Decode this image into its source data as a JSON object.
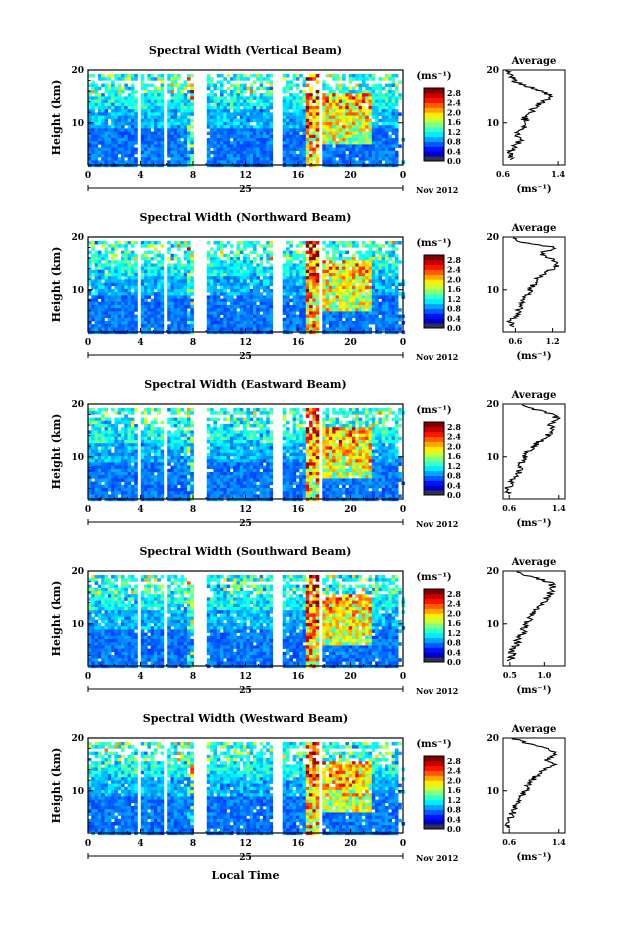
{
  "figure": {
    "date_label": "Nov 2012",
    "day_label": "25",
    "x_axis_title": "Local Time",
    "y_axis_title": "Height (km)",
    "colorbar_unit": "(ms⁻¹)",
    "avg_title": "Average",
    "avg_unit": "(ms⁻¹)"
  },
  "chart_data": [
    {
      "type": "heatmap",
      "title": "Spectral Width (Vertical Beam)",
      "xlabel": "Local Time",
      "ylabel": "Height (km)",
      "x_ticks": [
        "0",
        "4",
        "8",
        "12",
        "16",
        "20",
        "0"
      ],
      "y_ticks": [
        "10",
        "20"
      ],
      "xlim": [
        0,
        24
      ],
      "ylim": [
        2,
        20
      ],
      "colorbar": {
        "ticks": [
          "0.0",
          "0.4",
          "0.8",
          "1.2",
          "1.6",
          "2.0",
          "2.4",
          "2.8"
        ],
        "range": [
          0,
          3.0
        ]
      },
      "gaps": [
        [
          3.6,
          4.0
        ],
        [
          5.6,
          5.9
        ],
        [
          7.9,
          8.9
        ],
        [
          14.0,
          14.6
        ],
        [
          17.5,
          17.8
        ]
      ],
      "profile": {
        "xlim": [
          0.6,
          1.5
        ],
        "x_ticks": [
          "0.6",
          "1.4"
        ],
        "y_ticks": [
          "10",
          "20"
        ],
        "ylim": [
          2,
          20
        ],
        "heights": [
          3,
          4,
          5,
          6,
          7,
          8,
          9,
          10,
          11,
          12,
          13,
          14,
          15,
          16,
          17,
          18,
          19,
          20
        ],
        "values": [
          0.72,
          0.68,
          0.75,
          0.8,
          0.85,
          0.78,
          0.88,
          0.95,
          0.9,
          1.0,
          1.05,
          1.2,
          1.3,
          1.15,
          0.95,
          0.75,
          0.7,
          0.65
        ]
      }
    },
    {
      "type": "heatmap",
      "title": "Spectral Width (Northward Beam)",
      "xlabel": "Local Time",
      "ylabel": "Height (km)",
      "x_ticks": [
        "0",
        "4",
        "8",
        "12",
        "16",
        "20",
        "0"
      ],
      "y_ticks": [
        "10",
        "20"
      ],
      "xlim": [
        0,
        24
      ],
      "ylim": [
        2,
        20
      ],
      "colorbar": {
        "ticks": [
          "0.0",
          "0.4",
          "0.8",
          "1.2",
          "1.6",
          "2.0",
          "2.4",
          "2.8"
        ],
        "range": [
          0,
          3.0
        ]
      },
      "gaps": [
        [
          3.6,
          4.0
        ],
        [
          5.6,
          5.9
        ],
        [
          7.9,
          8.9
        ],
        [
          14.0,
          14.6
        ],
        [
          17.5,
          17.8
        ]
      ],
      "profile": {
        "xlim": [
          0.4,
          1.4
        ],
        "x_ticks": [
          "0.6",
          "1.2"
        ],
        "y_ticks": [
          "10",
          "20"
        ],
        "ylim": [
          2,
          20
        ],
        "heights": [
          3,
          4,
          5,
          6,
          7,
          8,
          9,
          10,
          11,
          12,
          13,
          14,
          15,
          16,
          17,
          18,
          19,
          20
        ],
        "values": [
          0.55,
          0.5,
          0.6,
          0.65,
          0.72,
          0.7,
          0.8,
          0.85,
          0.9,
          0.95,
          1.05,
          1.2,
          1.3,
          1.15,
          1.0,
          1.25,
          0.7,
          0.55
        ]
      }
    },
    {
      "type": "heatmap",
      "title": "Spectral Width (Eastward Beam)",
      "xlabel": "Local Time",
      "ylabel": "Height (km)",
      "x_ticks": [
        "0",
        "4",
        "8",
        "12",
        "16",
        "20",
        "0"
      ],
      "y_ticks": [
        "10",
        "20"
      ],
      "xlim": [
        0,
        24
      ],
      "ylim": [
        2,
        20
      ],
      "colorbar": {
        "ticks": [
          "0.0",
          "0.4",
          "0.8",
          "1.2",
          "1.6",
          "2.0",
          "2.4",
          "2.8"
        ],
        "range": [
          0,
          3.0
        ]
      },
      "gaps": [
        [
          3.6,
          4.0
        ],
        [
          5.6,
          5.9
        ],
        [
          7.9,
          8.9
        ],
        [
          14.0,
          14.6
        ],
        [
          17.5,
          17.8
        ]
      ],
      "profile": {
        "xlim": [
          0.5,
          1.5
        ],
        "x_ticks": [
          "0.6",
          "1.4"
        ],
        "y_ticks": [
          "10",
          "20"
        ],
        "ylim": [
          2,
          20
        ],
        "heights": [
          3,
          4,
          5,
          6,
          7,
          8,
          9,
          10,
          11,
          12,
          13,
          14,
          15,
          16,
          17,
          18,
          19,
          20
        ],
        "values": [
          0.6,
          0.58,
          0.62,
          0.7,
          0.75,
          0.78,
          0.8,
          0.85,
          0.92,
          1.0,
          1.1,
          1.2,
          1.35,
          1.25,
          1.4,
          1.3,
          1.0,
          0.7
        ]
      }
    },
    {
      "type": "heatmap",
      "title": "Spectral Width (Southward Beam)",
      "xlabel": "Local Time",
      "ylabel": "Height (km)",
      "x_ticks": [
        "0",
        "4",
        "8",
        "12",
        "16",
        "20",
        "0"
      ],
      "y_ticks": [
        "10",
        "20"
      ],
      "xlim": [
        0,
        24
      ],
      "ylim": [
        2,
        20
      ],
      "colorbar": {
        "ticks": [
          "0.0",
          "0.4",
          "0.8",
          "1.2",
          "1.6",
          "2.0",
          "2.4",
          "2.8"
        ],
        "range": [
          0,
          3.0
        ]
      },
      "gaps": [
        [
          3.6,
          4.0
        ],
        [
          5.6,
          5.9
        ],
        [
          7.9,
          8.9
        ],
        [
          14.0,
          14.6
        ],
        [
          17.5,
          17.8
        ]
      ],
      "profile": {
        "xlim": [
          0.4,
          1.3
        ],
        "x_ticks": [
          "0.5",
          "1.0"
        ],
        "y_ticks": [
          "10",
          "20"
        ],
        "ylim": [
          2,
          20
        ],
        "heights": [
          3,
          4,
          5,
          6,
          7,
          8,
          9,
          10,
          11,
          12,
          13,
          14,
          15,
          16,
          17,
          18,
          19,
          20
        ],
        "values": [
          0.5,
          0.55,
          0.52,
          0.6,
          0.62,
          0.68,
          0.7,
          0.72,
          0.8,
          0.85,
          0.9,
          1.0,
          1.05,
          1.1,
          1.15,
          1.05,
          0.8,
          0.6
        ]
      }
    },
    {
      "type": "heatmap",
      "title": "Spectral Width (Westward Beam)",
      "xlabel": "Local Time",
      "ylabel": "Height (km)",
      "x_ticks": [
        "0",
        "4",
        "8",
        "12",
        "16",
        "20",
        "0"
      ],
      "y_ticks": [
        "10",
        "20"
      ],
      "xlim": [
        0,
        24
      ],
      "ylim": [
        2,
        20
      ],
      "colorbar": {
        "ticks": [
          "0.0",
          "0.4",
          "0.8",
          "1.2",
          "1.6",
          "2.0",
          "2.4",
          "2.8"
        ],
        "range": [
          0,
          3.0
        ]
      },
      "gaps": [
        [
          3.6,
          4.0
        ],
        [
          5.6,
          5.9
        ],
        [
          7.9,
          8.9
        ],
        [
          14.0,
          14.6
        ],
        [
          17.5,
          17.8
        ]
      ],
      "profile": {
        "xlim": [
          0.5,
          1.5
        ],
        "x_ticks": [
          "0.6",
          "1.4"
        ],
        "y_ticks": [
          "10",
          "20"
        ],
        "ylim": [
          2,
          20
        ],
        "heights": [
          3,
          4,
          5,
          6,
          7,
          8,
          9,
          10,
          11,
          12,
          13,
          14,
          15,
          16,
          17,
          18,
          19,
          20
        ],
        "values": [
          0.6,
          0.55,
          0.62,
          0.66,
          0.7,
          0.75,
          0.8,
          0.85,
          0.9,
          0.98,
          1.05,
          1.15,
          1.3,
          1.2,
          1.35,
          1.25,
          0.9,
          0.65
        ]
      }
    }
  ]
}
